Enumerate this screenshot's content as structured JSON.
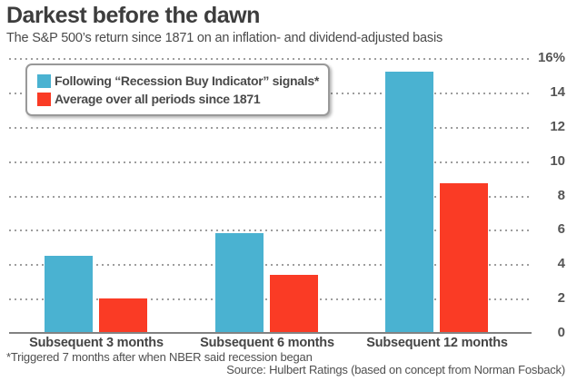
{
  "header": {
    "title": "Darkest before the dawn",
    "subtitle": "The S&P 500’s return since 1871 on an inflation- and dividend-adjusted basis"
  },
  "legend": {
    "items": [
      {
        "label": "Following “Recession Buy Indicator” signals*",
        "color": "#4AB2D1"
      },
      {
        "label": "Average over all periods since 1871",
        "color": "#FA3B25"
      }
    ]
  },
  "yaxis": {
    "labels": [
      "16%",
      "14",
      "12",
      "10",
      "8",
      "6",
      "4",
      "2",
      "0"
    ]
  },
  "footnotes": {
    "asterisk": "*Triggered 7 months after when NBER said recession began",
    "source": "Source: Hulbert Ratings (based on concept from Norman Fosback)"
  },
  "chart_data": {
    "type": "bar",
    "title": "Darkest before the dawn",
    "subtitle": "The S&P 500’s return since 1871 on an inflation- and dividend-adjusted basis",
    "categories": [
      "Subsequent 3 months",
      "Subsequent 6 months",
      "Subsequent 12 months"
    ],
    "series": [
      {
        "name": "Following “Recession Buy Indicator” signals*",
        "color": "#4AB2D1",
        "values": [
          4.5,
          5.8,
          15.2
        ]
      },
      {
        "name": "Average over all periods since 1871",
        "color": "#FA3B25",
        "values": [
          2.0,
          3.4,
          8.7
        ]
      }
    ],
    "xlabel": "",
    "ylabel": "",
    "ylim": [
      0,
      16
    ],
    "ytick_step": 2,
    "ytick_suffix_top": "%",
    "axis_side": "right",
    "grid": "dotted-horizontal",
    "legend_position": "top-left"
  }
}
